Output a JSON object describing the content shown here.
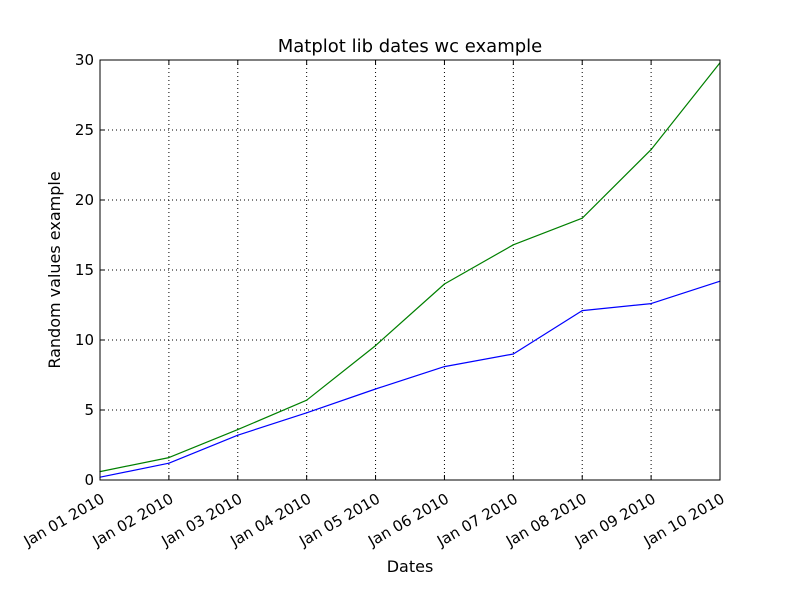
{
  "chart_data": {
    "type": "line",
    "title": "Matplot lib dates wc example",
    "xlabel": "Dates",
    "ylabel": "Random values example",
    "x": [
      "Jan 01 2010",
      "Jan 02 2010",
      "Jan 03 2010",
      "Jan 04 2010",
      "Jan 05 2010",
      "Jan 06 2010",
      "Jan 07 2010",
      "Jan 08 2010",
      "Jan 09 2010",
      "Jan 10 2010"
    ],
    "x_tick_labels": [
      "Jan 01 2010",
      "Jan 02 2010",
      "Jan 03 2010",
      "Jan 04 2010",
      "Jan 05 2010",
      "Jan 06 2010",
      "Jan 07 2010",
      "Jan 08 2010",
      "Jan 09 2010",
      "Jan 10 2010"
    ],
    "y_ticks": [
      0,
      5,
      10,
      15,
      20,
      25,
      30
    ],
    "ylim": [
      0,
      30
    ],
    "grid": true,
    "x_tick_rotation": "30 degrees",
    "series": [
      {
        "color": "#0000ff",
        "values": [
          0.2,
          1.2,
          3.2,
          4.8,
          6.5,
          8.1,
          9.0,
          12.1,
          12.6,
          14.2
        ]
      },
      {
        "color": "#008000",
        "values": [
          0.6,
          1.6,
          3.6,
          5.7,
          9.6,
          14.0,
          16.8,
          18.7,
          23.6,
          29.8
        ]
      }
    ]
  }
}
